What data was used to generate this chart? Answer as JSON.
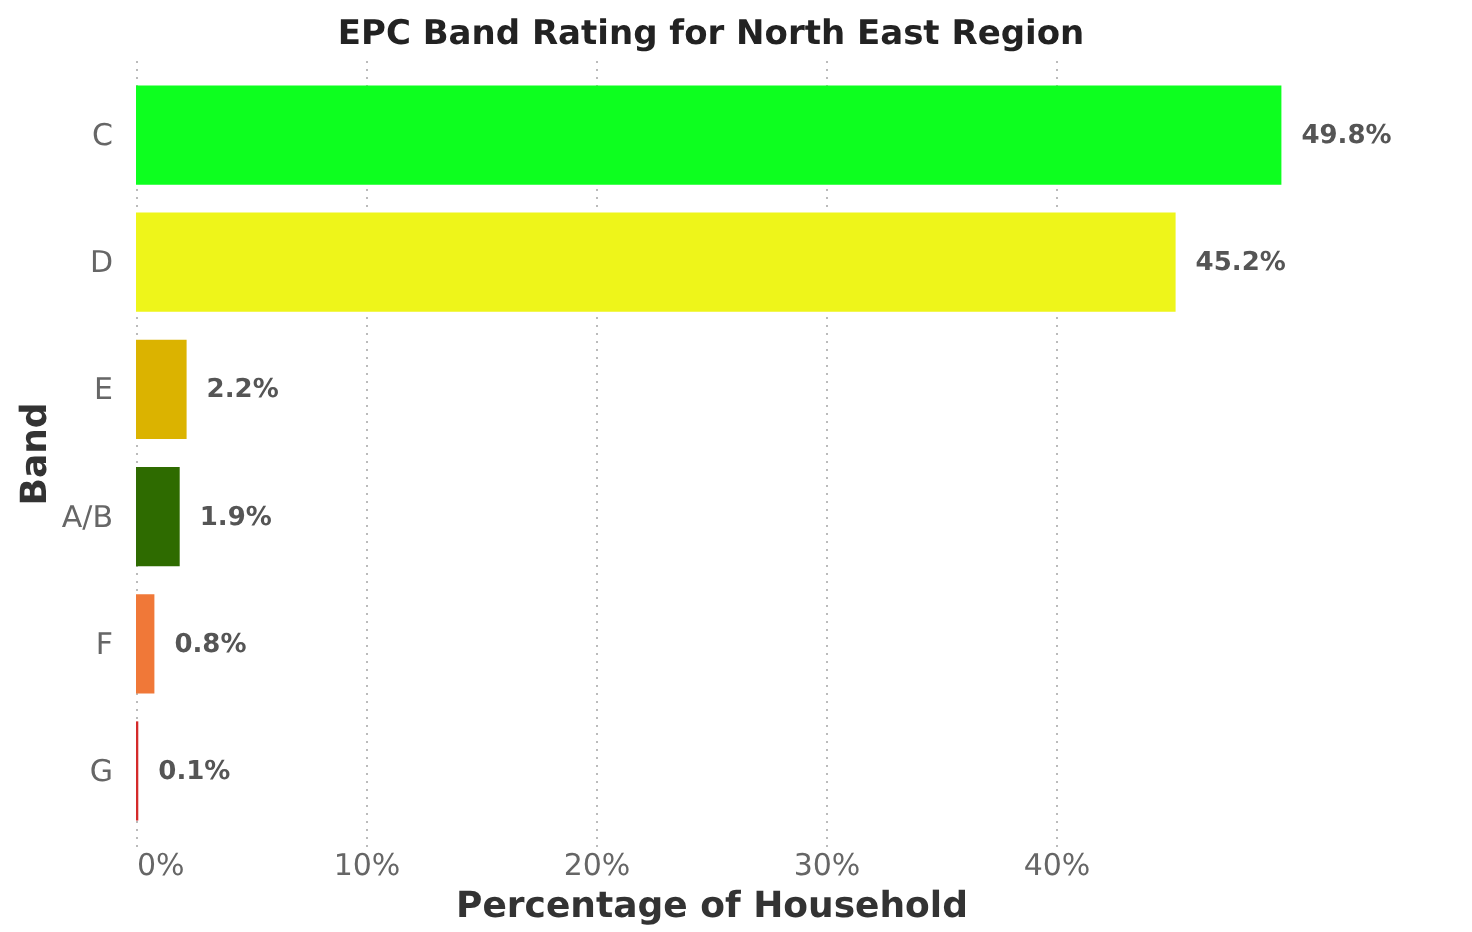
{
  "chart_data": {
    "type": "bar",
    "orientation": "horizontal",
    "title": "EPC Band Rating for North East Region",
    "xlabel": "Percentage of Household",
    "ylabel": "Band",
    "categories": [
      "C",
      "D",
      "E",
      "A/B",
      "F",
      "G"
    ],
    "values": [
      49.8,
      45.2,
      2.2,
      1.9,
      0.8,
      0.1
    ],
    "colors": [
      "#0dff1f",
      "#eef51a",
      "#dbb300",
      "#2e6b00",
      "#f07838",
      "#d42a2a"
    ],
    "value_labels": [
      "49.8%",
      "45.2%",
      "2.2%",
      "1.9%",
      "0.8%",
      "0.1%"
    ],
    "xlim": [
      0,
      50
    ],
    "xticks": [
      {
        "value": 0,
        "label": "0%"
      },
      {
        "value": 10,
        "label": "10%"
      },
      {
        "value": 20,
        "label": "20%"
      },
      {
        "value": 30,
        "label": "30%"
      },
      {
        "value": 40,
        "label": "40%"
      }
    ],
    "grid": "x",
    "legend": false
  }
}
